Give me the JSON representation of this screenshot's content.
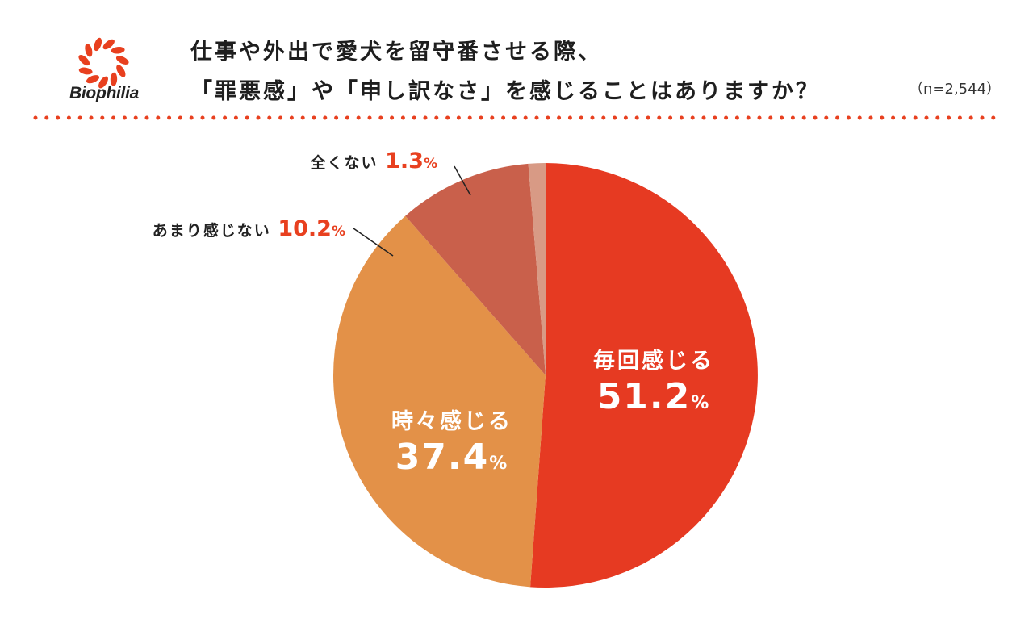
{
  "brand": {
    "name": "Biophilia",
    "color": "#e8401f"
  },
  "title": {
    "line1": "仕事や外出で愛犬を留守番させる際、",
    "line2": "「罪悪感」や「申し訳なさ」を感じることはありますか？"
  },
  "sample_size": "（n=2,544）",
  "chart_data": {
    "type": "pie",
    "unit": "%",
    "start_angle_deg": 0,
    "direction": "clockwise",
    "slices": [
      {
        "label": "毎回感じる",
        "value": 51.2,
        "color": "#e63a22",
        "label_position": "inside"
      },
      {
        "label": "時々感じる",
        "value": 37.4,
        "color": "#e39148",
        "label_position": "inside"
      },
      {
        "label": "あまり感じない",
        "value": 10.2,
        "color": "#c9604b",
        "label_position": "outside"
      },
      {
        "label": "全くない",
        "value": 1.3,
        "color": "#d89a85",
        "label_position": "outside"
      }
    ],
    "label_value_color": "#e8401f"
  }
}
